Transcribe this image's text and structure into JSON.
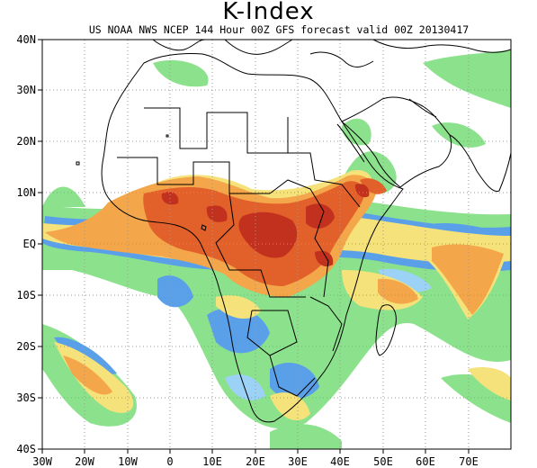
{
  "title": "K-Index",
  "subtitle": "US NOAA NWS NCEP 144 Hour 00Z GFS forecast valid 00Z 20130417",
  "latitude_labels": [
    "40N",
    "30N",
    "20N",
    "10N",
    "EQ",
    "10S",
    "20S",
    "30S",
    "40S"
  ],
  "longitude_labels": [
    "30W",
    "20W",
    "10W",
    "0",
    "10E",
    "20E",
    "30E",
    "40E",
    "50E",
    "60E",
    "70E"
  ],
  "colors": {
    "lightgreen": "#8ce28c",
    "blue": "#5aa0e8",
    "lightblue": "#9cd2f5",
    "yellow": "#f5e27a",
    "orange": "#f3a64a",
    "red": "#e2602a",
    "darkred": "#c2301e",
    "grid": "#9a9a9a",
    "coast": "#000000"
  }
}
